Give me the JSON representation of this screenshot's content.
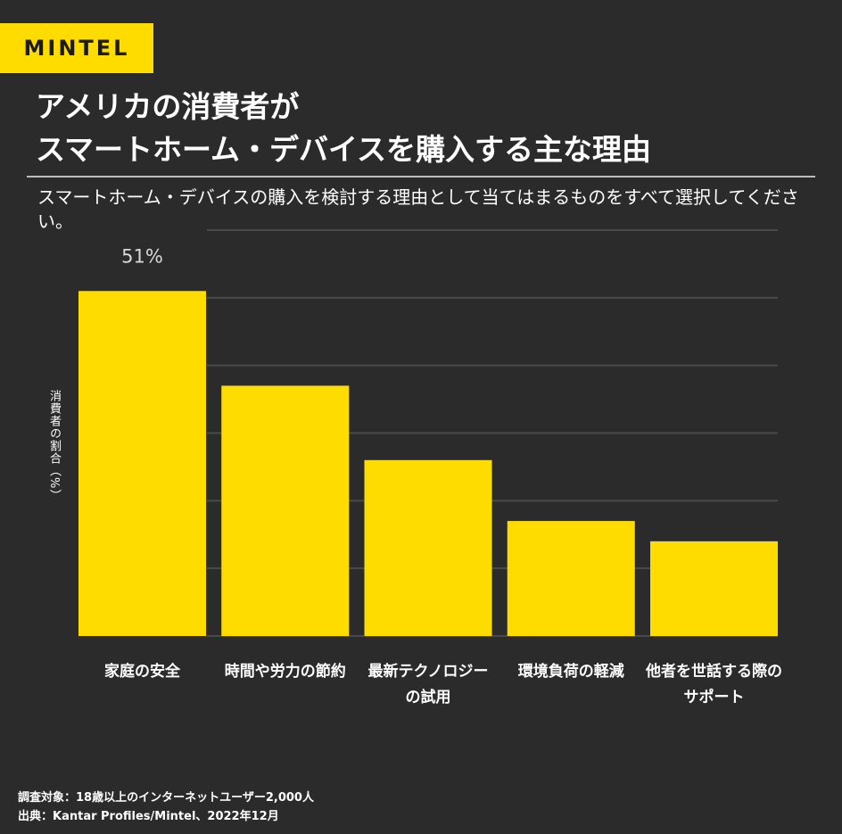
{
  "brand": {
    "logo_text": "MINTEL",
    "accent_color": "#ffdc00"
  },
  "header": {
    "title_line1": "アメリカの消費者が",
    "title_line2": "スマートホーム・デバイスを購入する主な理由",
    "subtitle": "スマートホーム・デバイスの購入を検討する理由として当てはまるものをすべて選択してください。"
  },
  "chart_data": {
    "type": "bar",
    "categories": [
      "家庭の安全",
      "時間や労力の節約",
      "最新テクノロジーの試用",
      "環境負荷の軽減",
      "他者を世話する際のサポート"
    ],
    "category_lines": [
      [
        "家庭の安全"
      ],
      [
        "時間や労力の節約"
      ],
      [
        "最新テクノロジー",
        "の試用"
      ],
      [
        "環境負荷の軽減"
      ],
      [
        "他者を世話する際の",
        "サポート"
      ]
    ],
    "values": [
      51,
      37,
      26,
      17,
      14
    ],
    "data_labels": [
      "51%",
      "",
      "",
      "",
      ""
    ],
    "ylabel": "消費者の割合（%）",
    "ylim": [
      0,
      60
    ],
    "grid": true,
    "bar_color": "#ffdc00",
    "grid_color": "#4a4a4a"
  },
  "footer": {
    "survey": "調査対象：18歳以上のインターネットユーザー2,000人",
    "source": "出典：Kantar Profiles/Mintel、2022年12月"
  }
}
